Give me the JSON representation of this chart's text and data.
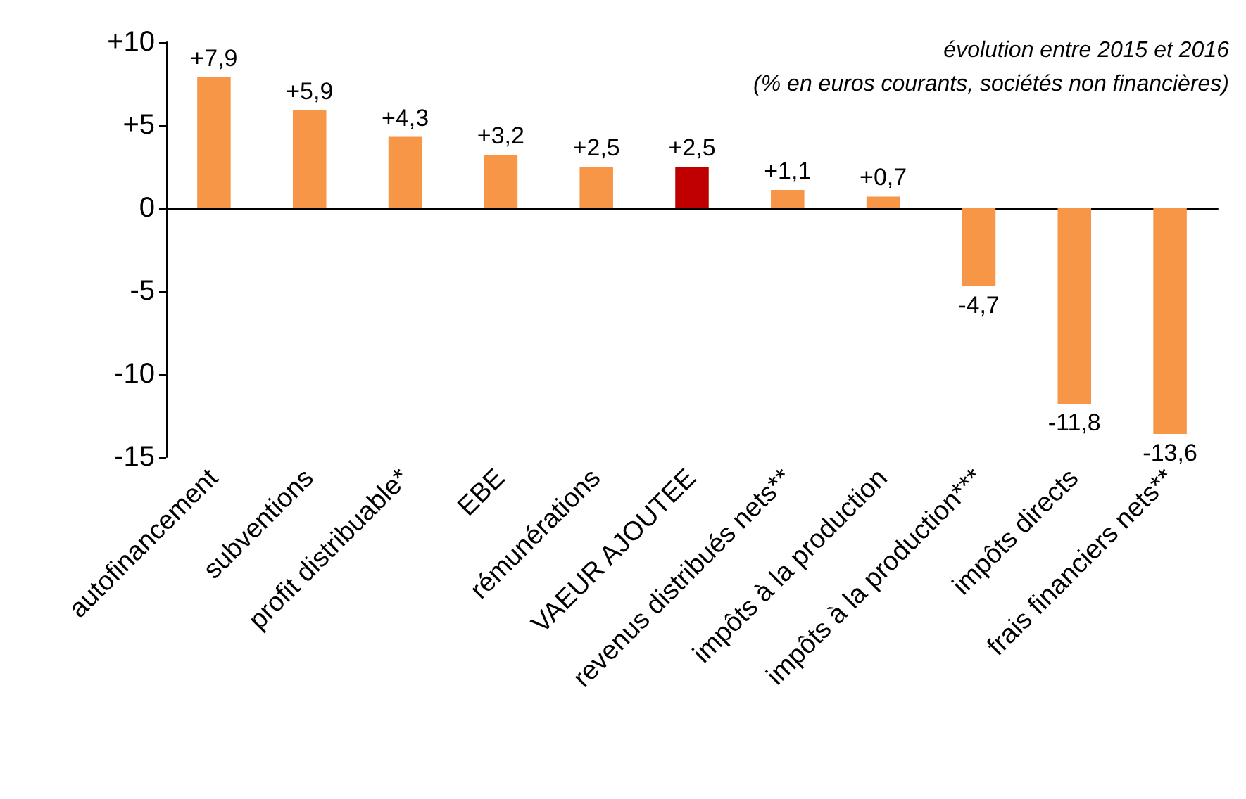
{
  "chart_data": {
    "type": "bar",
    "categories": [
      "autofinancement",
      "subventions",
      "profit distribuable*",
      "EBE",
      "rémunérations",
      "VAEUR AJOUTEE",
      "revenus distribués nets**",
      "impôts à la production",
      "impôts à la production***",
      "impôts directs",
      "frais financiers nets**"
    ],
    "values": [
      7.9,
      5.9,
      4.3,
      3.2,
      2.5,
      2.5,
      1.1,
      0.7,
      -4.7,
      -11.8,
      -13.6
    ],
    "value_labels": [
      "+7,9",
      "+5,9",
      "+4,3",
      "+3,2",
      "+2,5",
      "+2,5",
      "+1,1",
      "+0,7",
      "-4,7",
      "-11,8",
      "-13,6"
    ],
    "colors": [
      "#f79646",
      "#f79646",
      "#f79646",
      "#f79646",
      "#f79646",
      "#c00000",
      "#f79646",
      "#f79646",
      "#f79646",
      "#f79646",
      "#f79646"
    ],
    "ylim": [
      -15,
      10
    ],
    "yticks": [
      {
        "value": 10,
        "label": "+10"
      },
      {
        "value": 5,
        "label": "+5"
      },
      0,
      -5,
      -10,
      -15
    ],
    "annotations": [
      "évolution entre 2015 et 2016",
      "(% en euros courants, sociétés non financières)"
    ]
  }
}
